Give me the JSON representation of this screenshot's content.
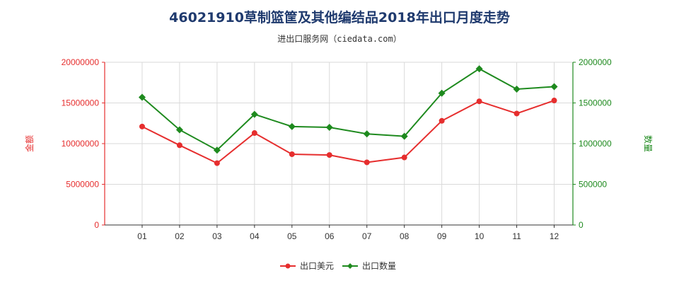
{
  "title": "46021910草制篮筐及其他编结品2018年出口月度走势",
  "subtitle": "进出口服务网（ciedata.com）",
  "colors": {
    "series_value": "#e62e2e",
    "series_quantity": "#1e8a1e",
    "grid": "#d9d9d9"
  },
  "chart_data": {
    "type": "line",
    "title": "46021910草制篮筐及其他编结品2018年出口月度走势",
    "categories": [
      "01",
      "02",
      "03",
      "04",
      "05",
      "06",
      "07",
      "08",
      "09",
      "10",
      "11",
      "12"
    ],
    "left_axis": {
      "label": "金额",
      "ylim": [
        0,
        20000000
      ],
      "ticks": [
        "0",
        "5000000",
        "10000000",
        "15000000",
        "20000000"
      ]
    },
    "right_axis": {
      "label": "数量",
      "ylim": [
        0,
        2000000
      ],
      "ticks": [
        "0",
        "500000",
        "1000000",
        "1500000",
        "2000000"
      ]
    },
    "series": [
      {
        "name": "出口美元",
        "axis": "left",
        "color": "#e62e2e",
        "marker": "circle",
        "values": [
          12100000,
          9800000,
          7600000,
          11300000,
          8700000,
          8600000,
          7700000,
          8300000,
          12800000,
          15200000,
          13700000,
          15300000
        ]
      },
      {
        "name": "出口数量",
        "axis": "right",
        "color": "#1e8a1e",
        "marker": "diamond",
        "values": [
          1570000,
          1170000,
          920000,
          1360000,
          1210000,
          1200000,
          1120000,
          1090000,
          1620000,
          1920000,
          1670000,
          1700000
        ]
      }
    ],
    "grid": true,
    "legend": "bottom-center"
  }
}
